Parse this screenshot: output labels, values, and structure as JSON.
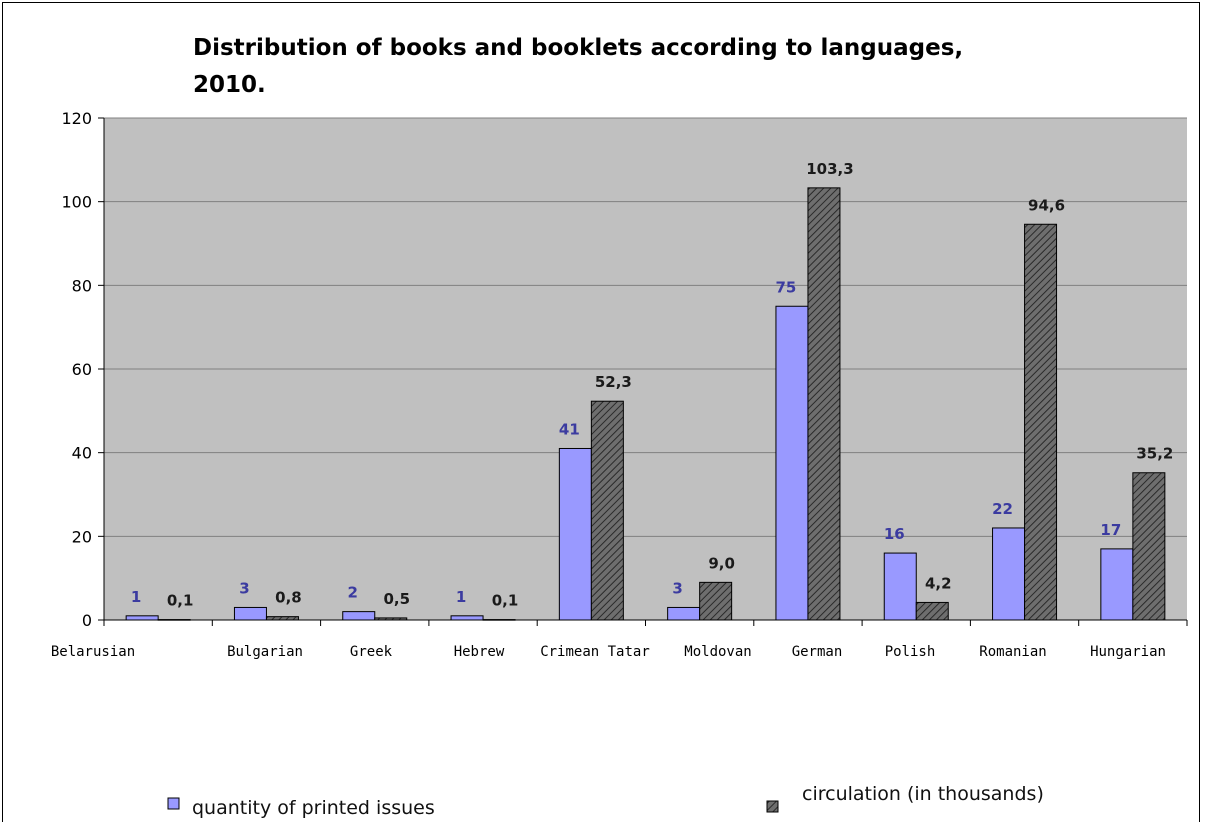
{
  "chart_data": {
    "type": "bar",
    "title_lines": [
      "Distribution of books and booklets according to languages,",
      "2010."
    ],
    "xlabel": "",
    "ylabel": "",
    "ylim": [
      0,
      120
    ],
    "yticks": [
      0,
      20,
      40,
      60,
      80,
      100,
      120
    ],
    "grid": true,
    "legend_position": "bottom",
    "categories": [
      "Belarusian",
      "Bulgarian",
      "Greek",
      "Hebrew",
      "Crimean Tatar",
      "Moldovan",
      "German",
      "Polish",
      "Romanian",
      "Hungarian"
    ],
    "series": [
      {
        "name": "quantity of printed issues",
        "values": [
          1,
          3,
          2,
          1,
          41,
          3,
          75,
          16,
          22,
          17
        ],
        "labels": [
          "1",
          "3",
          "2",
          "1",
          "41",
          "3",
          "75",
          "16",
          "22",
          "17"
        ],
        "color": "#9999ff",
        "pattern": "solid"
      },
      {
        "name": "circulation (in thousands)",
        "values": [
          0.1,
          0.8,
          0.5,
          0.1,
          52.3,
          9.0,
          103.3,
          4.2,
          94.6,
          35.2
        ],
        "labels": [
          "0,1",
          "0,8",
          "0,5",
          "0,1",
          "52,3",
          "9,0",
          "103,3",
          "4,2",
          "94,6",
          "35,2"
        ],
        "color": "#666666",
        "pattern": "diagonal-hatch"
      }
    ],
    "plot_background": "#c0c0c0",
    "gridline_color": "#808080"
  }
}
